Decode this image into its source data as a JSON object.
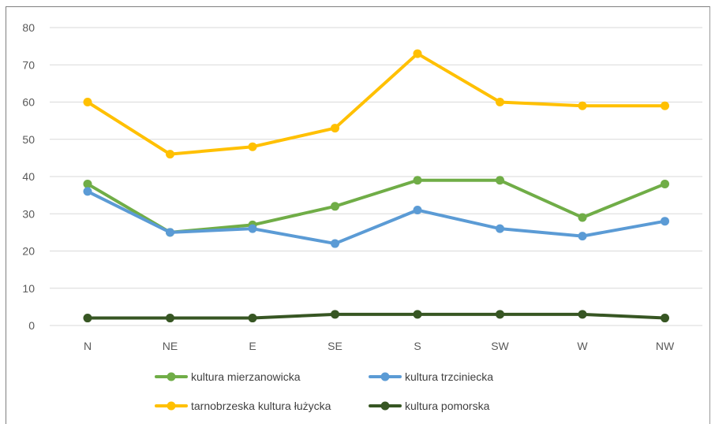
{
  "chart_data": {
    "type": "line",
    "categories": [
      "N",
      "NE",
      "E",
      "SE",
      "S",
      "SW",
      "W",
      "NW"
    ],
    "ylim": [
      0,
      80
    ],
    "yticks": [
      0,
      10,
      20,
      30,
      40,
      50,
      60,
      70,
      80
    ],
    "grid": true,
    "legend_position": "bottom",
    "series": [
      {
        "name": "kultura mierzanowicka",
        "color": "#70ad47",
        "values": [
          38,
          25,
          27,
          32,
          39,
          39,
          29,
          38
        ]
      },
      {
        "name": "kultura trzciniecka",
        "color": "#5b9bd5",
        "values": [
          36,
          25,
          26,
          22,
          31,
          26,
          24,
          28
        ]
      },
      {
        "name": "tarnobrzeska kultura łużycka",
        "color": "#ffc000",
        "values": [
          60,
          46,
          48,
          53,
          73,
          60,
          59,
          59
        ]
      },
      {
        "name": "kultura pomorska",
        "color": "#375623",
        "values": [
          2,
          2,
          2,
          3,
          3,
          3,
          3,
          2
        ]
      }
    ]
  }
}
